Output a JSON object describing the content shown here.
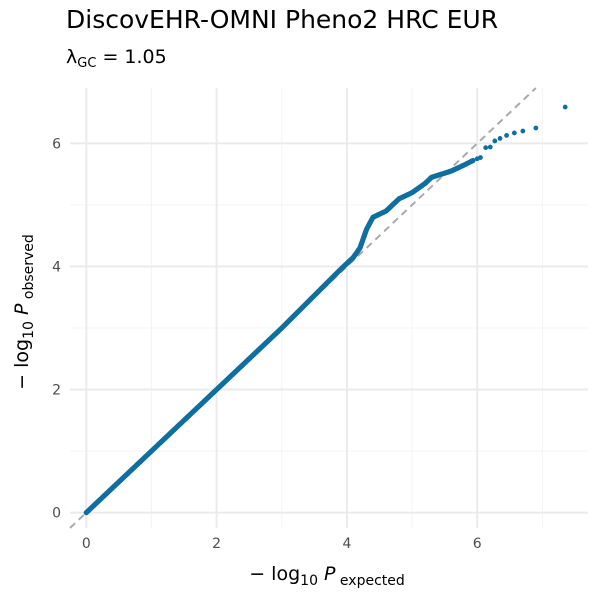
{
  "chart_data": {
    "type": "scatter",
    "title": "DiscovEHR-OMNI Pheno2 HRC EUR",
    "subtitle": {
      "symbol": "λ",
      "subscript": "GC",
      "text": " = 1.05"
    },
    "xlabel": {
      "prefix": "− log",
      "base": "10",
      "symbol": "P",
      "subscript": "expected"
    },
    "ylabel": {
      "prefix": "− log",
      "base": "10",
      "symbol": "P",
      "subscript": "observed"
    },
    "xlim": [
      -0.25,
      7.7
    ],
    "ylim": [
      -0.25,
      6.9
    ],
    "xticks": [
      0,
      2,
      4,
      6
    ],
    "yticks": [
      0,
      2,
      4,
      6
    ],
    "grid": true,
    "reference_line": "y = x",
    "colors": {
      "points": "#0f6fa0",
      "reference_line": "#aaaaaa",
      "grid_major": "#ebebeb",
      "grid_minor": "#f4f4f4"
    },
    "series": [
      {
        "curve": [
          [
            0.0,
            0.0
          ],
          [
            1.0,
            1.0
          ],
          [
            2.0,
            2.0
          ],
          [
            3.0,
            3.0
          ],
          [
            3.9,
            3.95
          ],
          [
            4.1,
            4.15
          ],
          [
            4.2,
            4.3
          ],
          [
            4.25,
            4.45
          ],
          [
            4.3,
            4.6
          ],
          [
            4.4,
            4.8
          ],
          [
            4.6,
            4.9
          ],
          [
            4.8,
            5.1
          ],
          [
            5.0,
            5.2
          ],
          [
            5.2,
            5.35
          ],
          [
            5.3,
            5.45
          ],
          [
            5.45,
            5.5
          ],
          [
            5.6,
            5.55
          ],
          [
            5.8,
            5.65
          ],
          [
            5.95,
            5.73
          ]
        ],
        "tail_points": [
          [
            6.0,
            5.75
          ],
          [
            6.05,
            5.77
          ],
          [
            6.13,
            5.93
          ],
          [
            6.2,
            5.94
          ],
          [
            6.27,
            6.04
          ],
          [
            6.35,
            6.08
          ],
          [
            6.45,
            6.13
          ],
          [
            6.57,
            6.17
          ],
          [
            6.7,
            6.2
          ],
          [
            6.9,
            6.25
          ],
          [
            7.35,
            6.59
          ]
        ]
      }
    ]
  }
}
